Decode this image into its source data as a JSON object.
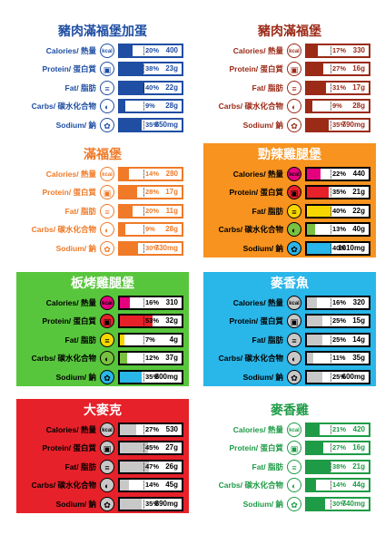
{
  "labels": {
    "calories": "Calories/ 熱量",
    "protein": "Protein/ 蛋白質",
    "fat": "Fat/ 脂肪",
    "carbs": "Carbs/ 碳水化合物",
    "sodium": "Sodium/ 鈉"
  },
  "icon_kcal": "kcal",
  "items": [
    {
      "title": "豬肉滿福堡加蛋",
      "style": "outline",
      "color": "#1f4ea3",
      "rows": [
        {
          "pct": "20%",
          "fraction": 0.2,
          "amount": "400",
          "highlight": "#1f4ea3"
        },
        {
          "pct": "38%",
          "fraction": 0.38,
          "amount": "23g",
          "highlight": "#1f4ea3"
        },
        {
          "pct": "40%",
          "fraction": 0.4,
          "amount": "22g",
          "highlight": "#1f4ea3"
        },
        {
          "pct": "9%",
          "fraction": 0.09,
          "amount": "28g",
          "highlight": "#1f4ea3"
        },
        {
          "pct": "35%",
          "fraction": 0.35,
          "amount": "850mg",
          "highlight": "#1f4ea3"
        }
      ]
    },
    {
      "title": "豬肉滿福堡",
      "style": "outline",
      "color": "#9b2a17",
      "rows": [
        {
          "pct": "17%",
          "fraction": 0.17,
          "amount": "330",
          "highlight": "#9b2a17"
        },
        {
          "pct": "27%",
          "fraction": 0.27,
          "amount": "16g",
          "highlight": "#9b2a17"
        },
        {
          "pct": "31%",
          "fraction": 0.31,
          "amount": "17g",
          "highlight": "#9b2a17"
        },
        {
          "pct": "9%",
          "fraction": 0.09,
          "amount": "28g",
          "highlight": "#9b2a17"
        },
        {
          "pct": "35%",
          "fraction": 0.35,
          "amount": "790mg",
          "highlight": "#9b2a17"
        }
      ]
    },
    {
      "title": "滿福堡",
      "style": "outline",
      "color": "#f07a28",
      "rows": [
        {
          "pct": "14%",
          "fraction": 0.14,
          "amount": "280",
          "highlight": "#f07a28"
        },
        {
          "pct": "28%",
          "fraction": 0.28,
          "amount": "17g",
          "highlight": "#f07a28"
        },
        {
          "pct": "20%",
          "fraction": 0.2,
          "amount": "11g",
          "highlight": "#f07a28"
        },
        {
          "pct": "9%",
          "fraction": 0.09,
          "amount": "28g",
          "highlight": "#f07a28"
        },
        {
          "pct": "30%",
          "fraction": 0.3,
          "amount": "730mg",
          "highlight": "#f07a28"
        }
      ]
    },
    {
      "title": "勁辣雞腿堡",
      "style": "filled",
      "color": "#f7931e",
      "rows": [
        {
          "pct": "22%",
          "fraction": 0.22,
          "amount": "440",
          "highlight": "#e5007e"
        },
        {
          "pct": "35%",
          "fraction": 0.35,
          "amount": "21g",
          "highlight": "#e6212a"
        },
        {
          "pct": "40%",
          "fraction": 0.4,
          "amount": "22g",
          "highlight": "#f6d600"
        },
        {
          "pct": "13%",
          "fraction": 0.13,
          "amount": "40g",
          "highlight": "#7ac142"
        },
        {
          "pct": "40%",
          "fraction": 0.4,
          "amount": "1010mg",
          "highlight": "#29b6e9"
        }
      ]
    },
    {
      "title": "板烤雞腿堡",
      "style": "filled",
      "color": "#58c63c",
      "rows": [
        {
          "pct": "16%",
          "fraction": 0.16,
          "amount": "310",
          "highlight": "#e5007e"
        },
        {
          "pct": "53%",
          "fraction": 0.53,
          "amount": "32g",
          "highlight": "#e6212a"
        },
        {
          "pct": "7%",
          "fraction": 0.07,
          "amount": "4g",
          "highlight": "#f6d600"
        },
        {
          "pct": "12%",
          "fraction": 0.12,
          "amount": "37g",
          "highlight": "#7ac142"
        },
        {
          "pct": "35%",
          "fraction": 0.35,
          "amount": "800mg",
          "highlight": "#29b6e9"
        }
      ]
    },
    {
      "title": "麥香魚",
      "style": "filled",
      "color": "#29b6e9",
      "rows": [
        {
          "pct": "16%",
          "fraction": 0.16,
          "amount": "320",
          "highlight": "#c8c8c8"
        },
        {
          "pct": "25%",
          "fraction": 0.25,
          "amount": "15g",
          "highlight": "#c8c8c8"
        },
        {
          "pct": "25%",
          "fraction": 0.25,
          "amount": "14g",
          "highlight": "#c8c8c8"
        },
        {
          "pct": "11%",
          "fraction": 0.11,
          "amount": "35g",
          "highlight": "#c8c8c8"
        },
        {
          "pct": "25%",
          "fraction": 0.25,
          "amount": "600mg",
          "highlight": "#c8c8c8"
        }
      ]
    },
    {
      "title": "大麥克",
      "style": "filled",
      "color": "#e6212a",
      "rows": [
        {
          "pct": "27%",
          "fraction": 0.27,
          "amount": "530",
          "highlight": "#c8c8c8"
        },
        {
          "pct": "45%",
          "fraction": 0.45,
          "amount": "27g",
          "highlight": "#c8c8c8"
        },
        {
          "pct": "47%",
          "fraction": 0.47,
          "amount": "26g",
          "highlight": "#c8c8c8"
        },
        {
          "pct": "14%",
          "fraction": 0.14,
          "amount": "45g",
          "highlight": "#c8c8c8"
        },
        {
          "pct": "35%",
          "fraction": 0.35,
          "amount": "890mg",
          "highlight": "#c8c8c8"
        }
      ]
    },
    {
      "title": "麥香雞",
      "style": "outline",
      "color": "#1e9b46",
      "rows": [
        {
          "pct": "21%",
          "fraction": 0.21,
          "amount": "420",
          "highlight": "#1e9b46"
        },
        {
          "pct": "27%",
          "fraction": 0.27,
          "amount": "16g",
          "highlight": "#1e9b46"
        },
        {
          "pct": "38%",
          "fraction": 0.38,
          "amount": "21g",
          "highlight": "#1e9b46"
        },
        {
          "pct": "14%",
          "fraction": 0.14,
          "amount": "44g",
          "highlight": "#1e9b46"
        },
        {
          "pct": "30%",
          "fraction": 0.3,
          "amount": "740mg",
          "highlight": "#1e9b46"
        }
      ]
    }
  ]
}
